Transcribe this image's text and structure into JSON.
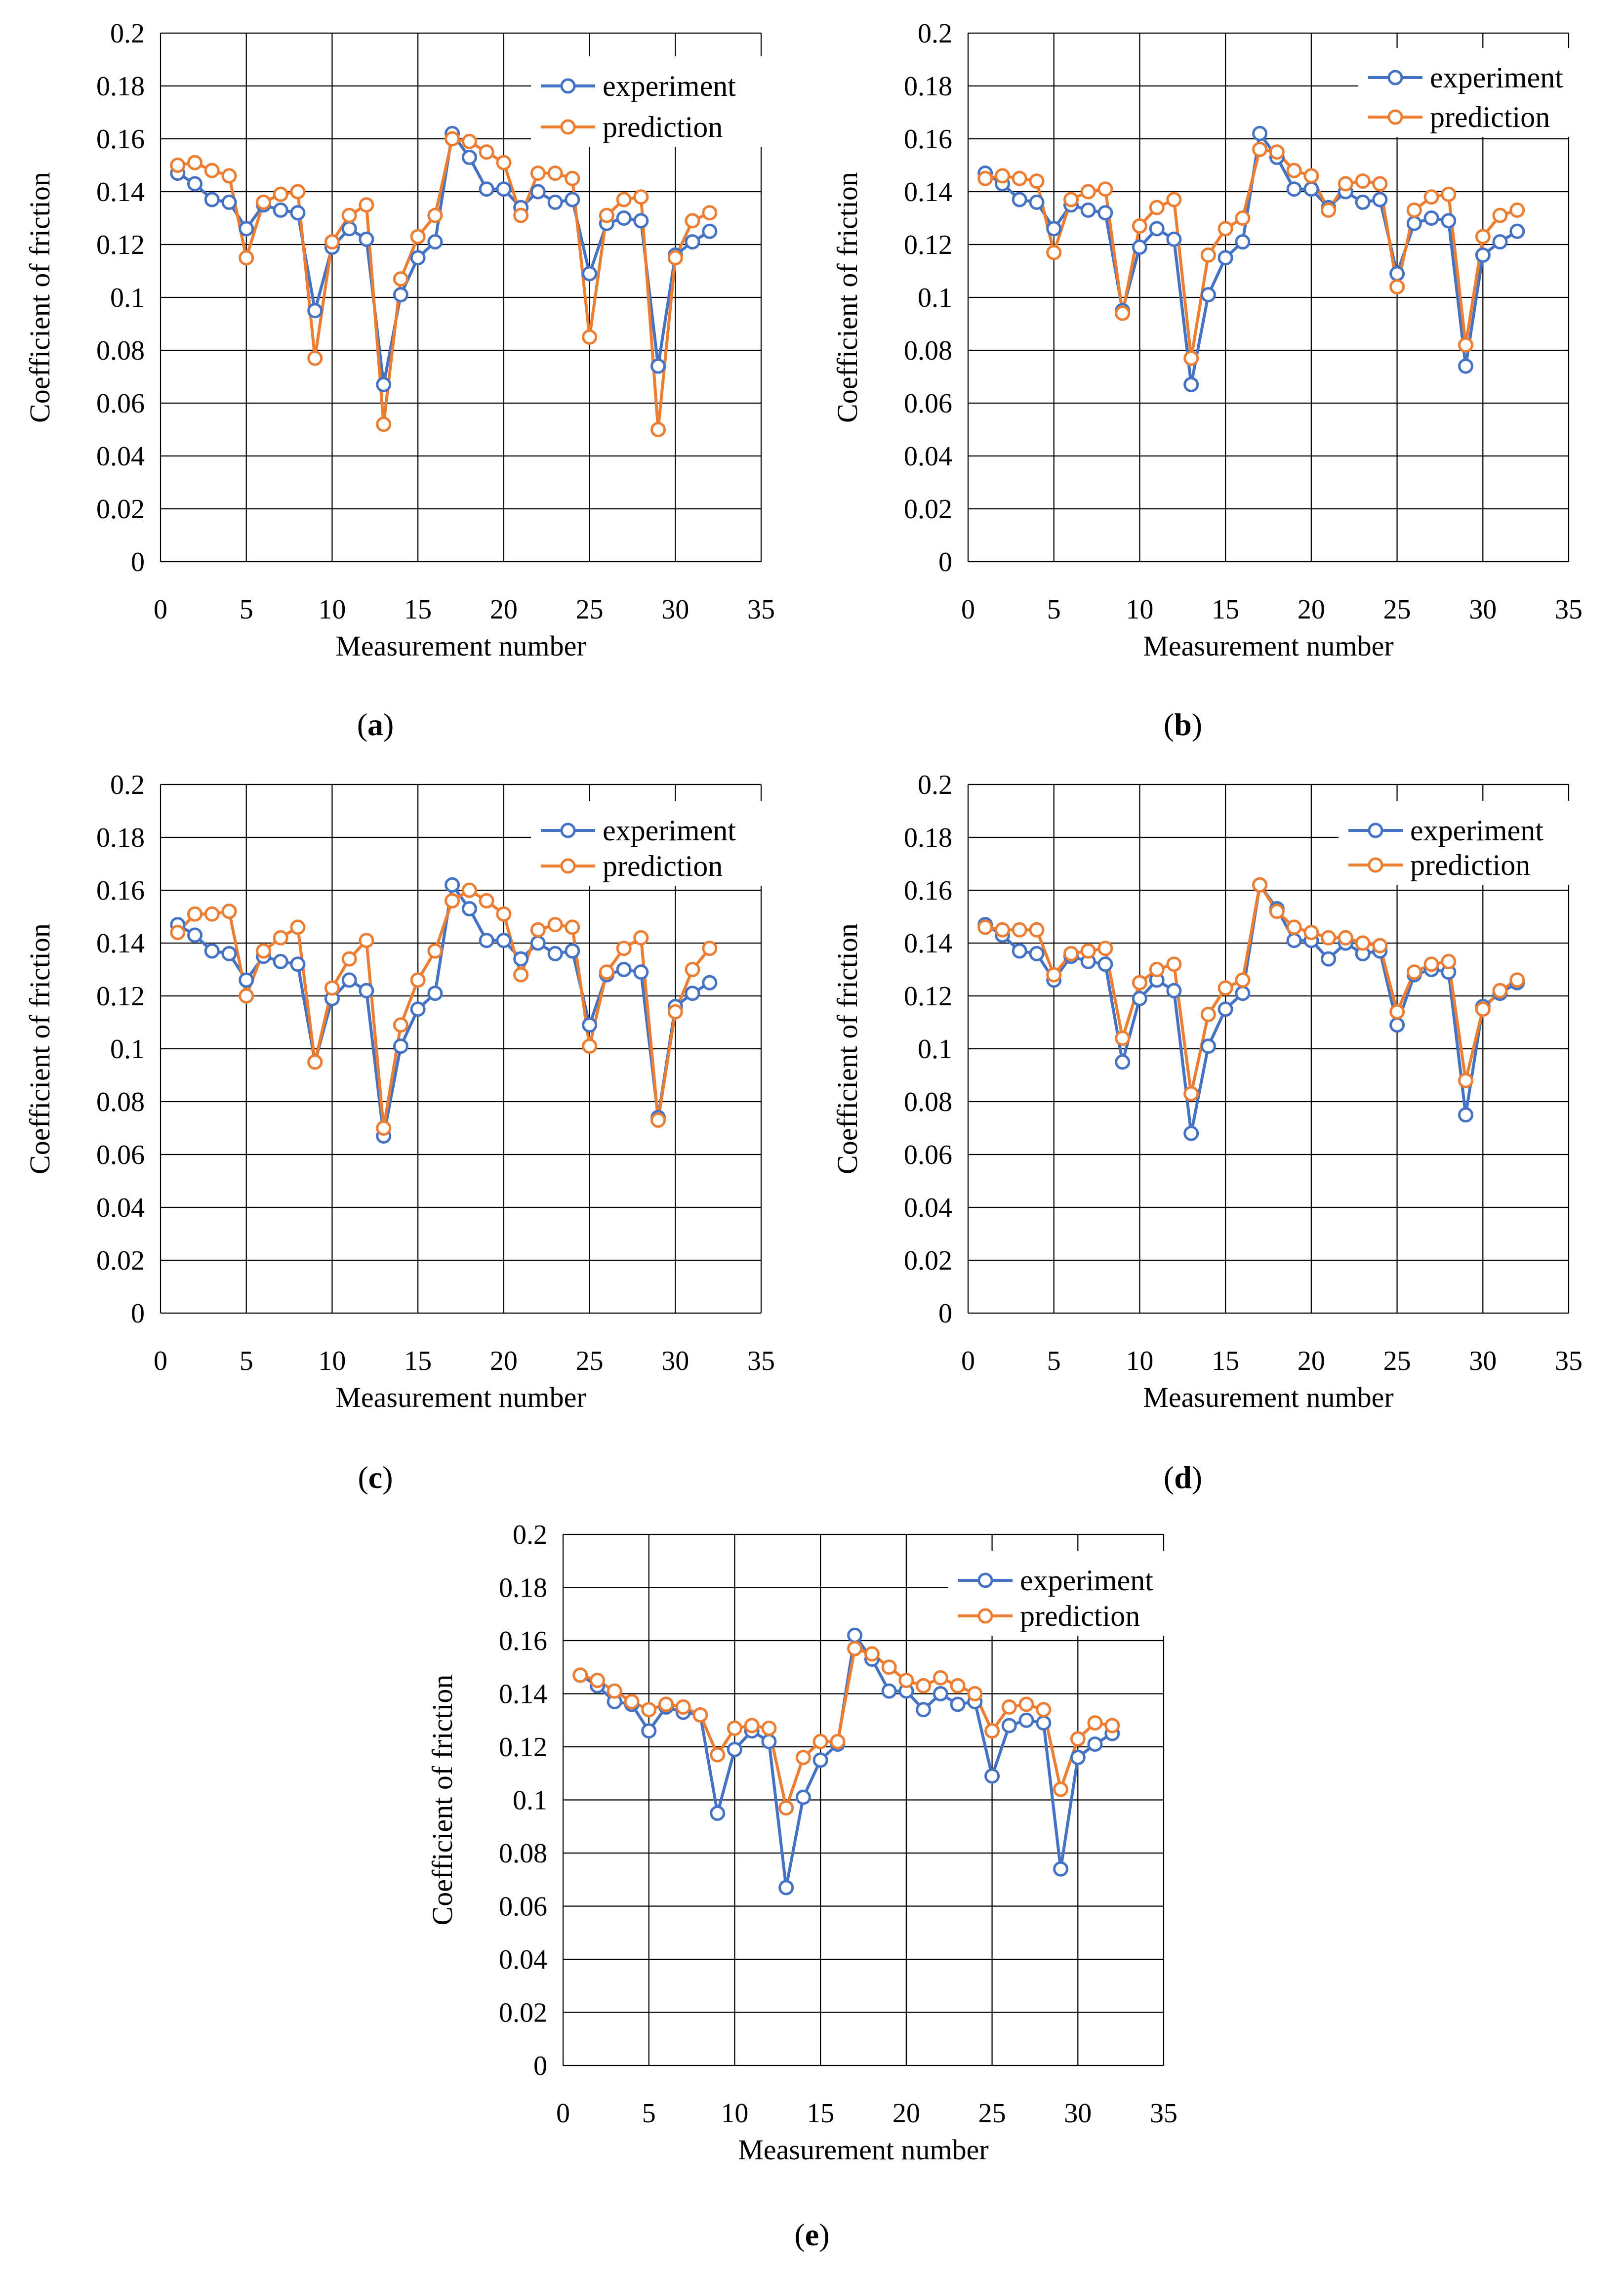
{
  "figure": {
    "panel_letters": [
      "a",
      "b",
      "c",
      "d",
      "e"
    ]
  },
  "colors": {
    "experiment": "#4472C4",
    "prediction": "#ED7D31",
    "grid": "#000000",
    "background": "#FFFFFF"
  },
  "chart_data": [
    {
      "type": "line",
      "panel": "a",
      "caption": "(a)",
      "xlabel": "Measurement number",
      "ylabel": "Coefficient of friction",
      "xlim": [
        0,
        35
      ],
      "ylim": [
        0,
        0.2
      ],
      "xticks": [
        0,
        5,
        10,
        15,
        20,
        25,
        30,
        35
      ],
      "xtick_labels": [
        "0",
        "5",
        "10",
        "15",
        "20",
        "25",
        "30",
        "35"
      ],
      "yticks": [
        0,
        0.02,
        0.04,
        0.06,
        0.08,
        0.1,
        0.12,
        0.14,
        0.16,
        0.18,
        0.2
      ],
      "ytick_labels": [
        "0",
        "0.02",
        "0.04",
        "0.06",
        "0.08",
        "0.1",
        "0.12",
        "0.14",
        "0.16",
        "0.18",
        "0.2"
      ],
      "grid": true,
      "legend": "top-right",
      "x": [
        1,
        2,
        3,
        4,
        5,
        6,
        7,
        8,
        9,
        10,
        11,
        12,
        13,
        14,
        15,
        16,
        17,
        18,
        19,
        20,
        21,
        22,
        23,
        24,
        25,
        26,
        27,
        28,
        29,
        30,
        31,
        32
      ],
      "series": [
        {
          "name": "experiment",
          "values": [
            0.147,
            0.143,
            0.137,
            0.136,
            0.126,
            0.135,
            0.133,
            0.132,
            0.095,
            0.119,
            0.126,
            0.122,
            0.067,
            0.101,
            0.115,
            0.121,
            0.162,
            0.153,
            0.141,
            0.141,
            0.134,
            0.14,
            0.136,
            0.137,
            0.109,
            0.128,
            0.13,
            0.129,
            0.074,
            0.116,
            0.121,
            0.125
          ]
        },
        {
          "name": "prediction",
          "values": [
            0.15,
            0.151,
            0.148,
            0.146,
            0.115,
            0.136,
            0.139,
            0.14,
            0.077,
            0.121,
            0.131,
            0.135,
            0.052,
            0.107,
            0.123,
            0.131,
            0.16,
            0.159,
            0.155,
            0.151,
            0.131,
            0.147,
            0.147,
            0.145,
            0.085,
            0.131,
            0.137,
            0.138,
            0.05,
            0.115,
            0.129,
            0.132
          ]
        }
      ]
    },
    {
      "type": "line",
      "panel": "b",
      "caption": "(b)",
      "xlabel": "Measurement number",
      "ylabel": "Coefficient of friction",
      "xlim": [
        0,
        35
      ],
      "ylim": [
        0,
        0.2
      ],
      "xticks": [
        0,
        5,
        10,
        15,
        20,
        25,
        30,
        35
      ],
      "xtick_labels": [
        "0",
        "5",
        "10",
        "15",
        "20",
        "25",
        "30",
        "35"
      ],
      "yticks": [
        0,
        0.02,
        0.04,
        0.06,
        0.08,
        0.1,
        0.12,
        0.14,
        0.16,
        0.18,
        0.2
      ],
      "ytick_labels": [
        "0",
        "0.02",
        "0.04",
        "0.06",
        "0.08",
        "0.1",
        "0.12",
        "0.14",
        "0.16",
        "0.18",
        "0.2"
      ],
      "grid": true,
      "legend": "top-right",
      "x": [
        1,
        2,
        3,
        4,
        5,
        6,
        7,
        8,
        9,
        10,
        11,
        12,
        13,
        14,
        15,
        16,
        17,
        18,
        19,
        20,
        21,
        22,
        23,
        24,
        25,
        26,
        27,
        28,
        29,
        30,
        31,
        32
      ],
      "series": [
        {
          "name": "experiment",
          "values": [
            0.147,
            0.143,
            0.137,
            0.136,
            0.126,
            0.135,
            0.133,
            0.132,
            0.095,
            0.119,
            0.126,
            0.122,
            0.067,
            0.101,
            0.115,
            0.121,
            0.162,
            0.153,
            0.141,
            0.141,
            0.134,
            0.14,
            0.136,
            0.137,
            0.109,
            0.128,
            0.13,
            0.129,
            0.074,
            0.116,
            0.121,
            0.125
          ]
        },
        {
          "name": "prediction",
          "values": [
            0.145,
            0.146,
            0.145,
            0.144,
            0.117,
            0.137,
            0.14,
            0.141,
            0.094,
            0.127,
            0.134,
            0.137,
            0.077,
            0.116,
            0.126,
            0.13,
            0.156,
            0.155,
            0.148,
            0.146,
            0.133,
            0.143,
            0.144,
            0.143,
            0.104,
            0.133,
            0.138,
            0.139,
            0.082,
            0.123,
            0.131,
            0.133
          ]
        }
      ]
    },
    {
      "type": "line",
      "panel": "c",
      "caption": "(c)",
      "xlabel": "Measurement number",
      "ylabel": "Coefficient of friction",
      "xlim": [
        0,
        35
      ],
      "ylim": [
        0,
        0.2
      ],
      "xticks": [
        0,
        5,
        10,
        15,
        20,
        25,
        30,
        35
      ],
      "xtick_labels": [
        "0",
        "5",
        "10",
        "15",
        "20",
        "25",
        "30",
        "35"
      ],
      "yticks": [
        0,
        0.02,
        0.04,
        0.06,
        0.08,
        0.1,
        0.12,
        0.14,
        0.16,
        0.18,
        0.2
      ],
      "ytick_labels": [
        "0",
        "0.02",
        "0.04",
        "0.06",
        "0.08",
        "0.1",
        "0.12",
        "0.14",
        "0.16",
        "0.18",
        "0.2"
      ],
      "grid": true,
      "legend": "top-right",
      "x": [
        1,
        2,
        3,
        4,
        5,
        6,
        7,
        8,
        9,
        10,
        11,
        12,
        13,
        14,
        15,
        16,
        17,
        18,
        19,
        20,
        21,
        22,
        23,
        24,
        25,
        26,
        27,
        28,
        29,
        30,
        31,
        32
      ],
      "series": [
        {
          "name": "experiment",
          "values": [
            0.147,
            0.143,
            0.137,
            0.136,
            0.126,
            0.135,
            0.133,
            0.132,
            0.095,
            0.119,
            0.126,
            0.122,
            0.067,
            0.101,
            0.115,
            0.121,
            0.162,
            0.153,
            0.141,
            0.141,
            0.134,
            0.14,
            0.136,
            0.137,
            0.109,
            0.128,
            0.13,
            0.129,
            0.074,
            0.116,
            0.121,
            0.125
          ]
        },
        {
          "name": "prediction",
          "values": [
            0.144,
            0.151,
            0.151,
            0.152,
            0.12,
            0.137,
            0.142,
            0.146,
            0.095,
            0.123,
            0.134,
            0.141,
            0.07,
            0.109,
            0.126,
            0.137,
            0.156,
            0.16,
            0.156,
            0.151,
            0.128,
            0.145,
            0.147,
            0.146,
            0.101,
            0.129,
            0.138,
            0.142,
            0.073,
            0.114,
            0.13,
            0.138
          ]
        }
      ]
    },
    {
      "type": "line",
      "panel": "d",
      "caption": "(d)",
      "xlabel": "Measurement number",
      "ylabel": "Coefficient of friction",
      "xlim": [
        0,
        35
      ],
      "ylim": [
        0,
        0.2
      ],
      "xticks": [
        0,
        5,
        10,
        15,
        20,
        25,
        30,
        35
      ],
      "xtick_labels": [
        "0",
        "5",
        "10",
        "15",
        "20",
        "25",
        "30",
        "35"
      ],
      "yticks": [
        0,
        0.02,
        0.04,
        0.06,
        0.08,
        0.1,
        0.12,
        0.14,
        0.16,
        0.18,
        0.2
      ],
      "ytick_labels": [
        "0",
        "0.02",
        "0.04",
        "0.06",
        "0.08",
        "0.1",
        "0.12",
        "0.14",
        "0.16",
        "0.18",
        "0.2"
      ],
      "grid": true,
      "legend": "top-right",
      "x": [
        1,
        2,
        3,
        4,
        5,
        6,
        7,
        8,
        9,
        10,
        11,
        12,
        13,
        14,
        15,
        16,
        17,
        18,
        19,
        20,
        21,
        22,
        23,
        24,
        25,
        26,
        27,
        28,
        29,
        30,
        31,
        32
      ],
      "series": [
        {
          "name": "experiment",
          "values": [
            0.147,
            0.143,
            0.137,
            0.136,
            0.126,
            0.135,
            0.133,
            0.132,
            0.095,
            0.119,
            0.126,
            0.122,
            0.068,
            0.101,
            0.115,
            0.121,
            0.162,
            0.153,
            0.141,
            0.141,
            0.134,
            0.14,
            0.136,
            0.137,
            0.109,
            0.128,
            0.13,
            0.129,
            0.075,
            0.116,
            0.121,
            0.125
          ]
        },
        {
          "name": "prediction",
          "values": [
            0.146,
            0.145,
            0.145,
            0.145,
            0.128,
            0.136,
            0.137,
            0.138,
            0.104,
            0.125,
            0.13,
            0.132,
            0.083,
            0.113,
            0.123,
            0.126,
            0.162,
            0.152,
            0.146,
            0.144,
            0.142,
            0.142,
            0.14,
            0.139,
            0.114,
            0.129,
            0.132,
            0.133,
            0.088,
            0.115,
            0.122,
            0.126
          ]
        }
      ]
    },
    {
      "type": "line",
      "panel": "e",
      "caption": "(e)",
      "xlabel": "Measurement number",
      "ylabel": "Coefficient of friction",
      "xlim": [
        0,
        35
      ],
      "ylim": [
        0,
        0.2
      ],
      "xticks": [
        0,
        5,
        10,
        15,
        20,
        25,
        30,
        35
      ],
      "xtick_labels": [
        "0",
        "5",
        "10",
        "15",
        "20",
        "25",
        "30",
        "35"
      ],
      "yticks": [
        0,
        0.02,
        0.04,
        0.06,
        0.08,
        0.1,
        0.12,
        0.14,
        0.16,
        0.18,
        0.2
      ],
      "ytick_labels": [
        "0",
        "0.02",
        "0.04",
        "0.06",
        "0.08",
        "0.1",
        "0.12",
        "0.14",
        "0.16",
        "0.18",
        "0.2"
      ],
      "grid": true,
      "legend": "top-right",
      "x": [
        1,
        2,
        3,
        4,
        5,
        6,
        7,
        8,
        9,
        10,
        11,
        12,
        13,
        14,
        15,
        16,
        17,
        18,
        19,
        20,
        21,
        22,
        23,
        24,
        25,
        26,
        27,
        28,
        29,
        30,
        31,
        32
      ],
      "series": [
        {
          "name": "experiment",
          "values": [
            0.147,
            0.143,
            0.137,
            0.136,
            0.126,
            0.135,
            0.133,
            0.132,
            0.095,
            0.119,
            0.126,
            0.122,
            0.067,
            0.101,
            0.115,
            0.121,
            0.162,
            0.153,
            0.141,
            0.141,
            0.134,
            0.14,
            0.136,
            0.137,
            0.109,
            0.128,
            0.13,
            0.129,
            0.074,
            0.116,
            0.121,
            0.125
          ]
        },
        {
          "name": "prediction",
          "values": [
            0.147,
            0.145,
            0.141,
            0.137,
            0.134,
            0.136,
            0.135,
            0.132,
            0.117,
            0.127,
            0.128,
            0.127,
            0.097,
            0.116,
            0.122,
            0.122,
            0.157,
            0.155,
            0.15,
            0.145,
            0.143,
            0.146,
            0.143,
            0.14,
            0.126,
            0.135,
            0.136,
            0.134,
            0.104,
            0.123,
            0.129,
            0.128
          ]
        }
      ]
    }
  ]
}
